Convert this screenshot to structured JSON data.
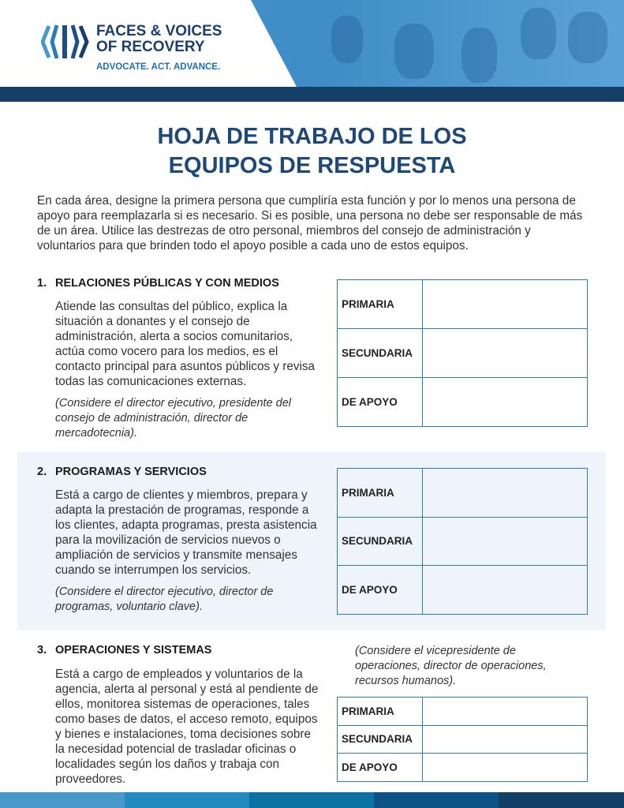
{
  "header": {
    "logo_line1": "FACES & VOICES",
    "logo_line2": "OF RECOVERY",
    "tagline": "ADVOCATE. ACT. ADVANCE."
  },
  "title_line1": "HOJA DE TRABAJO DE LOS",
  "title_line2": "EQUIPOS DE RESPUESTA",
  "intro": "En cada área, designe la primera persona que cumpliría esta función y por lo menos una persona de apoyo para reemplazarla si es necesario. Si es posible, una persona no debe ser responsable de más de un área. Utilice las destrezas de otro personal, miembros del consejo de administración y voluntarios para que brinden todo el apoyo posible a cada uno de estos equipos.",
  "sections": [
    {
      "number": "1.",
      "heading": "RELACIONES PÚBLICAS Y CON MEDIOS",
      "body": "Atiende las consultas del público, explica la situación a donantes y el consejo de administración, alerta a socios comunitarios, actúa como vocero para los medios, es el contacto principal para asuntos públicos y revisa todas las comunicaciones externas.",
      "note": "(Considere el director ejecutivo, presidente del consejo de administración, director de mercadotecnia).",
      "rows": [
        "PRIMARIA",
        "SECUNDARIA",
        "DE APOYO"
      ]
    },
    {
      "number": "2.",
      "heading": "PROGRAMAS Y SERVICIOS",
      "body": "Está a cargo de clientes y miembros, prepara y adapta la prestación de programas, responde a los clientes, adapta programas, presta asistencia para la movilización de servicios nuevos o ampliación de servicios y transmite mensajes cuando se interrumpen los servicios.",
      "note": "(Considere el director ejecutivo, director de programas, voluntario clave).",
      "rows": [
        "PRIMARIA",
        "SECUNDARIA",
        "DE APOYO"
      ]
    },
    {
      "number": "3.",
      "heading": "OPERACIONES Y SISTEMAS",
      "body": "Está a cargo de empleados y voluntarios de la agencia, alerta al personal y está al pendiente de ellos, monitorea sistemas de operaciones, tales como bases de datos, el acceso remoto, equipos y bienes e instalaciones, toma decisiones sobre la necesidad potencial de trasladar oficinas o localidades según los daños y trabaja con proveedores.",
      "note": "(Considere el vicepresidente de operaciones, director de operaciones, recursos humanos).",
      "rows": [
        "PRIMARIA",
        "SECUNDARIA",
        "DE APOYO"
      ]
    }
  ],
  "colors": {
    "navy": "#153f66",
    "title": "#1d4877",
    "table_border": "#2a7db5",
    "footer": [
      "#4a97c9",
      "#238bc0",
      "#0b72a3",
      "#0b5485",
      "#123f66"
    ]
  }
}
